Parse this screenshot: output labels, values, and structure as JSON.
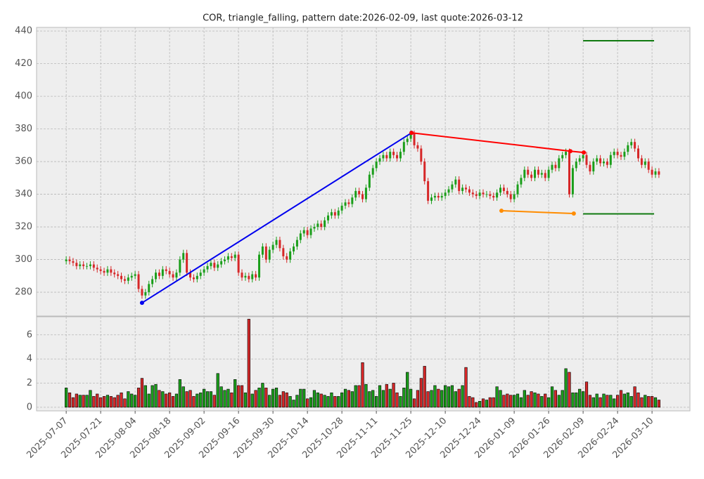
{
  "chart_data": {
    "type": "candlestick",
    "title": "COR, triangle_falling, pattern date:2026-02-09, last quote:2026-03-12",
    "up_color": "#1a9e1a",
    "down_color": "#d62728",
    "grid": true,
    "xlim": [
      -8.6,
      181
    ],
    "xticks": [
      {
        "value": 0,
        "label": "2025-07-07"
      },
      {
        "value": 10,
        "label": "2025-07-21"
      },
      {
        "value": 20,
        "label": "2025-08-04"
      },
      {
        "value": 30,
        "label": "2025-08-18"
      },
      {
        "value": 40,
        "label": "2025-09-02"
      },
      {
        "value": 50,
        "label": "2025-09-16"
      },
      {
        "value": 60,
        "label": "2025-09-30"
      },
      {
        "value": 70,
        "label": "2025-10-14"
      },
      {
        "value": 80,
        "label": "2025-10-28"
      },
      {
        "value": 90,
        "label": "2025-11-11"
      },
      {
        "value": 100,
        "label": "2025-11-25"
      },
      {
        "value": 110,
        "label": "2025-12-10"
      },
      {
        "value": 120,
        "label": "2025-12-24"
      },
      {
        "value": 130,
        "label": "2026-01-09"
      },
      {
        "value": 140,
        "label": "2026-01-26"
      },
      {
        "value": 150,
        "label": "2026-02-09"
      },
      {
        "value": 160,
        "label": "2026-02-24"
      },
      {
        "value": 170,
        "label": "2026-03-10"
      }
    ],
    "ylim": [
      265.4,
      442.2
    ],
    "yticks": [
      280,
      300,
      320,
      340,
      360,
      380,
      400,
      420,
      440
    ],
    "open": [
      299,
      300,
      299,
      298,
      296,
      297,
      296,
      296,
      297,
      295,
      294,
      293,
      292,
      294,
      292,
      291,
      290,
      288,
      287,
      289,
      290,
      291,
      282,
      278,
      280,
      285,
      288,
      292,
      290,
      294,
      293,
      291,
      289,
      292,
      300,
      304,
      292,
      289,
      288,
      290,
      292,
      294,
      296,
      298,
      295,
      297,
      299,
      300,
      302,
      301,
      303,
      292,
      289,
      290,
      288,
      291,
      289,
      303,
      308,
      300,
      306,
      309,
      312,
      307,
      302,
      300,
      305,
      308,
      312,
      316,
      318,
      315,
      319,
      320,
      322,
      320,
      324,
      327,
      329,
      327,
      330,
      333,
      335,
      334,
      338,
      342,
      340,
      337,
      344,
      352,
      356,
      360,
      362,
      364,
      362,
      366,
      364,
      362,
      366,
      372,
      374,
      377,
      370,
      368,
      360,
      348,
      336,
      338,
      339,
      338,
      339,
      341,
      343,
      346,
      349,
      342,
      344,
      343,
      341,
      340,
      339,
      341,
      340,
      340,
      339,
      338,
      341,
      344,
      342,
      340,
      337,
      340,
      346,
      350,
      355,
      352,
      350,
      355,
      352,
      353,
      350,
      355,
      358,
      356,
      362,
      364,
      366,
      340,
      356,
      360,
      362,
      364,
      358,
      354,
      360,
      362,
      359,
      360,
      358,
      364,
      366,
      364,
      363,
      366,
      370,
      372,
      368,
      362,
      358,
      360,
      355,
      352,
      354
    ],
    "high": [
      302,
      302,
      301,
      300,
      299,
      299,
      298,
      299,
      299,
      297,
      296,
      295,
      296,
      296,
      294,
      293,
      292,
      290,
      291,
      292,
      293,
      293,
      284,
      282,
      287,
      290,
      294,
      294,
      296,
      296,
      295,
      293,
      294,
      302,
      306,
      306,
      294,
      291,
      292,
      294,
      296,
      298,
      300,
      300,
      299,
      301,
      302,
      304,
      304,
      305,
      305,
      294,
      292,
      292,
      293,
      293,
      305,
      310,
      310,
      308,
      311,
      314,
      314,
      309,
      304,
      307,
      310,
      314,
      318,
      320,
      320,
      321,
      322,
      324,
      324,
      326,
      329,
      331,
      331,
      332,
      335,
      337,
      337,
      340,
      344,
      344,
      342,
      346,
      354,
      358,
      362,
      364,
      366,
      366,
      368,
      368,
      366,
      368,
      374,
      376,
      379,
      379,
      372,
      370,
      362,
      350,
      340,
      341,
      341,
      341,
      343,
      345,
      348,
      351,
      351,
      346,
      346,
      345,
      343,
      342,
      343,
      343,
      342,
      342,
      341,
      343,
      346,
      346,
      344,
      342,
      342,
      348,
      352,
      357,
      357,
      354,
      357,
      357,
      355,
      355,
      357,
      360,
      360,
      364,
      366,
      368,
      368,
      358,
      362,
      364,
      366,
      366,
      360,
      362,
      364,
      364,
      362,
      362,
      366,
      368,
      368,
      366,
      368,
      372,
      374,
      374,
      370,
      364,
      362,
      362,
      357,
      356,
      356
    ],
    "low": [
      297,
      297,
      296,
      294,
      294,
      294,
      294,
      294,
      293,
      292,
      291,
      290,
      290,
      290,
      289,
      288,
      286,
      285,
      285,
      287,
      288,
      280,
      276,
      276,
      278,
      283,
      286,
      288,
      288,
      291,
      289,
      287,
      287,
      290,
      298,
      290,
      287,
      286,
      286,
      288,
      290,
      292,
      294,
      293,
      293,
      295,
      297,
      298,
      299,
      299,
      290,
      287,
      287,
      286,
      286,
      287,
      287,
      301,
      298,
      298,
      304,
      307,
      305,
      300,
      298,
      298,
      303,
      306,
      310,
      314,
      313,
      313,
      317,
      318,
      318,
      318,
      322,
      325,
      325,
      325,
      328,
      331,
      332,
      332,
      336,
      338,
      335,
      335,
      342,
      350,
      354,
      358,
      360,
      360,
      360,
      362,
      360,
      360,
      364,
      370,
      372,
      368,
      366,
      358,
      346,
      334,
      334,
      336,
      336,
      336,
      337,
      339,
      341,
      344,
      340,
      340,
      341,
      339,
      338,
      337,
      337,
      338,
      338,
      337,
      336,
      336,
      339,
      340,
      338,
      335,
      335,
      338,
      344,
      348,
      350,
      348,
      348,
      350,
      350,
      348,
      348,
      353,
      354,
      354,
      360,
      362,
      338,
      338,
      354,
      358,
      360,
      356,
      352,
      352,
      358,
      357,
      357,
      356,
      356,
      362,
      362,
      361,
      361,
      364,
      368,
      366,
      360,
      356,
      356,
      353,
      350,
      350,
      350
    ],
    "close": [
      300,
      299,
      298,
      296,
      297,
      296,
      296,
      297,
      295,
      294,
      293,
      292,
      294,
      292,
      291,
      290,
      288,
      287,
      289,
      290,
      291,
      282,
      278,
      280,
      285,
      288,
      292,
      290,
      294,
      293,
      291,
      289,
      292,
      300,
      304,
      292,
      289,
      288,
      290,
      292,
      294,
      296,
      298,
      295,
      297,
      299,
      300,
      302,
      301,
      303,
      292,
      289,
      290,
      288,
      291,
      289,
      303,
      308,
      300,
      306,
      309,
      312,
      307,
      302,
      300,
      305,
      308,
      312,
      316,
      318,
      315,
      319,
      320,
      322,
      320,
      324,
      327,
      329,
      327,
      330,
      333,
      335,
      334,
      338,
      342,
      340,
      337,
      344,
      352,
      356,
      360,
      362,
      364,
      362,
      366,
      364,
      362,
      366,
      372,
      374,
      377,
      370,
      368,
      360,
      348,
      336,
      338,
      339,
      338,
      339,
      341,
      343,
      346,
      349,
      342,
      344,
      343,
      341,
      340,
      339,
      341,
      340,
      340,
      339,
      338,
      341,
      344,
      342,
      340,
      337,
      340,
      346,
      350,
      355,
      352,
      350,
      355,
      352,
      353,
      350,
      355,
      358,
      356,
      362,
      364,
      366,
      340,
      356,
      360,
      362,
      364,
      358,
      354,
      360,
      362,
      359,
      360,
      358,
      364,
      366,
      364,
      363,
      366,
      370,
      372,
      368,
      362,
      358,
      360,
      355,
      352,
      354,
      352
    ],
    "volume": {
      "ylim": [
        -0.3,
        7.5
      ],
      "yticks": [
        0,
        2,
        4,
        6
      ],
      "values": [
        1.6,
        1.2,
        0.8,
        1.1,
        1.0,
        1.0,
        1.0,
        1.4,
        0.9,
        1.1,
        0.8,
        0.9,
        1.0,
        0.9,
        0.8,
        1.0,
        1.2,
        0.7,
        1.3,
        1.1,
        1.0,
        1.6,
        2.4,
        1.8,
        1.1,
        1.8,
        1.9,
        1.4,
        1.3,
        1.1,
        1.2,
        0.9,
        1.1,
        2.3,
        1.7,
        1.3,
        1.4,
        0.9,
        1.1,
        1.2,
        1.5,
        1.3,
        1.3,
        1.0,
        2.8,
        1.7,
        1.4,
        1.5,
        1.2,
        2.3,
        1.8,
        1.8,
        1.2,
        7.3,
        1.1,
        1.4,
        1.6,
        2.0,
        1.6,
        1.0,
        1.5,
        1.6,
        1.0,
        1.3,
        1.2,
        0.9,
        0.6,
        1.0,
        1.5,
        1.5,
        0.7,
        0.8,
        1.4,
        1.2,
        1.1,
        1.0,
        0.9,
        1.2,
        0.9,
        0.9,
        1.2,
        1.5,
        1.4,
        1.3,
        1.8,
        1.8,
        3.7,
        1.9,
        1.3,
        1.4,
        0.9,
        1.8,
        1.4,
        1.9,
        1.5,
        2.0,
        1.2,
        0.9,
        1.6,
        2.9,
        1.5,
        0.7,
        1.4,
        2.4,
        3.4,
        1.3,
        1.4,
        1.8,
        1.5,
        1.4,
        1.8,
        1.7,
        1.8,
        1.3,
        1.5,
        1.8,
        3.3,
        0.9,
        0.8,
        0.4,
        0.5,
        0.7,
        0.6,
        0.8,
        0.8,
        1.7,
        1.4,
        1.0,
        1.1,
        1.0,
        1.0,
        1.1,
        0.8,
        1.4,
        1.0,
        1.3,
        1.2,
        1.1,
        0.9,
        1.1,
        0.8,
        1.7,
        1.4,
        1.0,
        1.4,
        3.2,
        2.9,
        1.2,
        1.2,
        1.5,
        1.3,
        2.1,
        1.0,
        0.8,
        1.1,
        0.8,
        1.1,
        1.0,
        1.0,
        0.7,
        1.0,
        1.4,
        1.1,
        1.2,
        0.9,
        1.7,
        1.2,
        0.8,
        1.0,
        0.9,
        0.9,
        0.8,
        0.6
      ]
    },
    "lines": [
      {
        "color": "#0000ee",
        "markers": true,
        "x": [
          22,
          100.2
        ],
        "y": [
          273.5,
          377.6
        ]
      },
      {
        "color": "#ff0000",
        "markers": true,
        "x": [
          100.2,
          146.3,
          150.2
        ],
        "y": [
          377.6,
          366.4,
          365.6
        ]
      },
      {
        "color": "#ff8c00",
        "markers": true,
        "x": [
          126.3,
          147.3
        ],
        "y": [
          329.9,
          328.2
        ]
      },
      {
        "color": "#107a10",
        "markers": false,
        "x": [
          150,
          170.6
        ],
        "y": [
          434,
          434
        ]
      },
      {
        "color": "#107a10",
        "markers": false,
        "x": [
          150,
          170.6
        ],
        "y": [
          328,
          328
        ]
      }
    ]
  }
}
